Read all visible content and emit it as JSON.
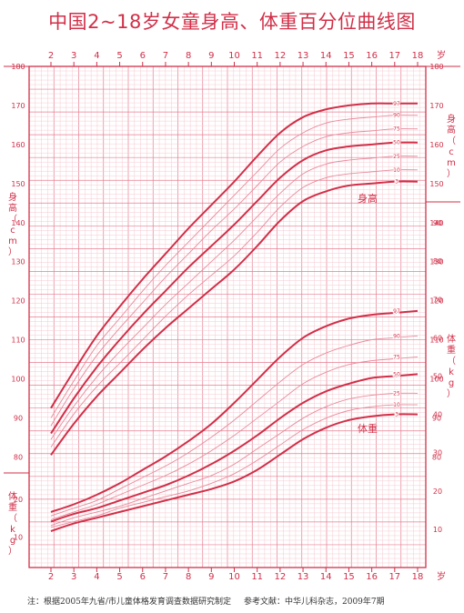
{
  "chart_data": {
    "type": "line",
    "title": "中国2~18岁女童身高、体重百分位曲线图",
    "x_axis": {
      "label": "岁",
      "range": [
        2,
        18
      ],
      "ticks": [
        "2",
        "3",
        "4",
        "5",
        "6",
        "7",
        "8",
        "9",
        "10",
        "11",
        "12",
        "13",
        "14",
        "15",
        "16",
        "17",
        "18"
      ]
    },
    "height_axis": {
      "label": "身高（cm）",
      "unit": "cm",
      "range": [
        78,
        180
      ],
      "ticks": [
        "80",
        "90",
        "100",
        "110",
        "120",
        "130",
        "140",
        "150",
        "160",
        "170",
        "180"
      ]
    },
    "weight_axis": {
      "label": "体重（kg）",
      "unit": "kg",
      "left_range": [
        2,
        26
      ],
      "left_ticks": [
        "10",
        "20"
      ],
      "right_range": [
        0,
        95
      ],
      "right_ticks": [
        "10",
        "20",
        "30",
        "40",
        "50",
        "60",
        "70",
        "80",
        "90"
      ]
    },
    "height_label": "身高",
    "weight_label": "体重",
    "percentiles": [
      "3",
      "10",
      "25",
      "50",
      "75",
      "90",
      "97"
    ],
    "height_curves": [
      {
        "name": "3",
        "x": [
          2,
          3,
          4,
          5,
          6,
          7,
          8,
          9,
          10,
          11,
          12,
          13,
          14,
          15,
          16,
          17,
          18
        ],
        "y": [
          80.5,
          88.5,
          95.5,
          101.5,
          107.5,
          113,
          118,
          123,
          128,
          134,
          140.5,
          145.5,
          148,
          149.5,
          150,
          150.5,
          150.5
        ]
      },
      {
        "name": "10",
        "x": [
          2,
          3,
          4,
          5,
          6,
          7,
          8,
          9,
          10,
          11,
          12,
          13,
          14,
          15,
          16,
          17,
          18
        ],
        "y": [
          82.5,
          91,
          98,
          104,
          110,
          116,
          121.5,
          126.5,
          131.5,
          137.5,
          144,
          149,
          151.5,
          152.5,
          153,
          153.5,
          153.5
        ]
      },
      {
        "name": "25",
        "x": [
          2,
          3,
          4,
          5,
          6,
          7,
          8,
          9,
          10,
          11,
          12,
          13,
          14,
          15,
          16,
          17,
          18
        ],
        "y": [
          84.5,
          93,
          100.5,
          107,
          113,
          119,
          124.5,
          130,
          135.5,
          141.5,
          147.5,
          152.5,
          155,
          156,
          156.5,
          157,
          157
        ]
      },
      {
        "name": "50",
        "x": [
          2,
          3,
          4,
          5,
          6,
          7,
          8,
          9,
          10,
          11,
          12,
          13,
          14,
          15,
          16,
          17,
          18
        ],
        "y": [
          86,
          95,
          103,
          110,
          116.5,
          122.5,
          128.5,
          134,
          139.5,
          145.5,
          151.5,
          156,
          158.5,
          159.5,
          160,
          160.5,
          160.5
        ]
      },
      {
        "name": "75",
        "x": [
          2,
          3,
          4,
          5,
          6,
          7,
          8,
          9,
          10,
          11,
          12,
          13,
          14,
          15,
          16,
          17,
          18
        ],
        "y": [
          88,
          97.5,
          106,
          113,
          119.5,
          126,
          132,
          138,
          143.5,
          149.5,
          155.5,
          159.5,
          162,
          163,
          163.5,
          164,
          164
        ]
      },
      {
        "name": "90",
        "x": [
          2,
          3,
          4,
          5,
          6,
          7,
          8,
          9,
          10,
          11,
          12,
          13,
          14,
          15,
          16,
          17,
          18
        ],
        "y": [
          90,
          99.5,
          108.5,
          115.5,
          122.5,
          129,
          135,
          141,
          147,
          153,
          159,
          163,
          165.5,
          166.5,
          167,
          167.5,
          167.5
        ]
      },
      {
        "name": "97",
        "x": [
          2,
          3,
          4,
          5,
          6,
          7,
          8,
          9,
          10,
          11,
          12,
          13,
          14,
          15,
          16,
          17,
          18
        ],
        "y": [
          92.5,
          102,
          111,
          118.5,
          125.5,
          132,
          138.5,
          144.5,
          150.5,
          157,
          163,
          167,
          169,
          170,
          170.5,
          170.5,
          170.5
        ]
      }
    ],
    "weight_curves": [
      {
        "name": "3",
        "x": [
          2,
          3,
          4,
          5,
          6,
          7,
          8,
          9,
          10,
          11,
          12,
          13,
          14,
          15,
          16,
          17,
          18
        ],
        "y": [
          9.5,
          11.5,
          13,
          14.5,
          16,
          17.5,
          19,
          20.5,
          22.5,
          25.5,
          29.5,
          33.5,
          36.5,
          38.5,
          39.5,
          40,
          40
        ]
      },
      {
        "name": "10",
        "x": [
          2,
          3,
          4,
          5,
          6,
          7,
          8,
          9,
          10,
          11,
          12,
          13,
          14,
          15,
          16,
          17,
          18
        ],
        "y": [
          10.5,
          12,
          13.5,
          15.5,
          17,
          18.5,
          20,
          22,
          24.5,
          28,
          32,
          36,
          39,
          41,
          42,
          42.5,
          42.5
        ]
      },
      {
        "name": "25",
        "x": [
          2,
          3,
          4,
          5,
          6,
          7,
          8,
          9,
          10,
          11,
          12,
          13,
          14,
          15,
          16,
          17,
          18
        ],
        "y": [
          11,
          13,
          14.5,
          16,
          18,
          20,
          22,
          24,
          27,
          31,
          35,
          39,
          42,
          44,
          45,
          45.5,
          45.5
        ]
      },
      {
        "name": "50",
        "x": [
          2,
          3,
          4,
          5,
          6,
          7,
          8,
          9,
          10,
          11,
          12,
          13,
          14,
          15,
          16,
          17,
          18
        ],
        "y": [
          12,
          14,
          15.5,
          17.5,
          19.5,
          21.5,
          24,
          27,
          30.5,
          34.5,
          39,
          43,
          46,
          48,
          49.5,
          50,
          50.5
        ]
      },
      {
        "name": "75",
        "x": [
          2,
          3,
          4,
          5,
          6,
          7,
          8,
          9,
          10,
          11,
          12,
          13,
          14,
          15,
          16,
          17,
          18
        ],
        "y": [
          12.5,
          14.5,
          16.5,
          19,
          21.5,
          24,
          27,
          30.5,
          34.5,
          39,
          43.5,
          48,
          51,
          53,
          54,
          54.5,
          55
        ]
      },
      {
        "name": "90",
        "x": [
          2,
          3,
          4,
          5,
          6,
          7,
          8,
          9,
          10,
          11,
          12,
          13,
          14,
          15,
          16,
          17,
          18
        ],
        "y": [
          13.5,
          15.5,
          17.5,
          20.5,
          23.5,
          26.5,
          30,
          34,
          38.5,
          43.5,
          48.5,
          53,
          56,
          58,
          59.5,
          60,
          60.5
        ]
      },
      {
        "name": "97",
        "x": [
          2,
          3,
          4,
          5,
          6,
          7,
          8,
          9,
          10,
          11,
          12,
          13,
          14,
          15,
          16,
          17,
          18
        ],
        "y": [
          14.5,
          16.5,
          19,
          22,
          25.5,
          29,
          33,
          37.5,
          43,
          49,
          55,
          60,
          63,
          65,
          66,
          66.5,
          67
        ]
      }
    ]
  },
  "footnote": {
    "note": "注：根据2005年九省/市儿童体格发育调查数据研究制定",
    "reference": "参考文献：中华儿科杂志，2009年7期"
  },
  "colors": {
    "accent": "#d12f48",
    "grid_fine": "#f6c9d1",
    "grid_major": "#e77d90",
    "curve_light": "#e88b9c"
  }
}
